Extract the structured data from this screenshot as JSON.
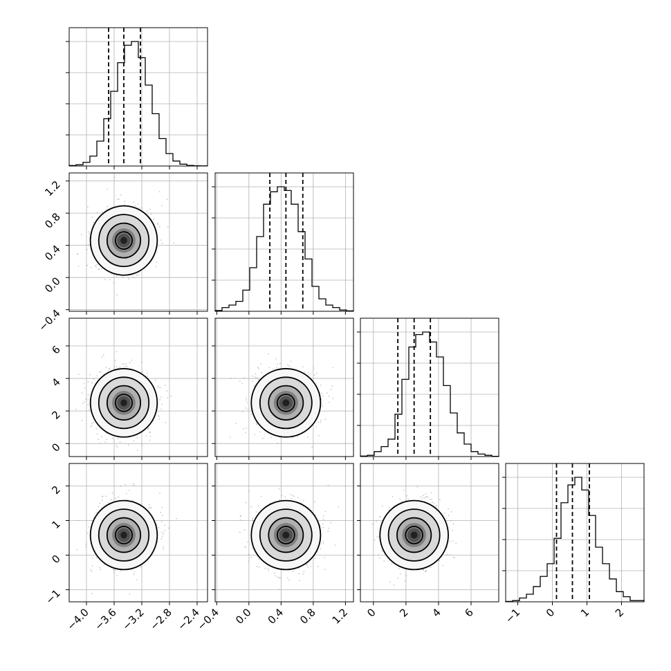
{
  "chart_data": {
    "type": "corner",
    "parameters": [
      {
        "id": "p0",
        "range": [
          -4.25,
          -2.25
        ],
        "ticks": [
          -4.0,
          -3.6,
          -3.2,
          -2.8,
          -2.4
        ],
        "tick_labels": [
          "−4.0",
          "−3.6",
          "−3.2",
          "−2.8",
          "−2.4"
        ],
        "quantiles": [
          -3.68,
          -3.46,
          -3.22
        ]
      },
      {
        "id": "p1",
        "range": [
          -0.42,
          1.3
        ],
        "ticks": [
          -0.4,
          0.0,
          0.4,
          0.8,
          1.2
        ],
        "tick_labels": [
          "−0.4",
          "0.0",
          "0.4",
          "0.8",
          "1.2"
        ],
        "quantiles": [
          0.26,
          0.46,
          0.67
        ]
      },
      {
        "id": "p2",
        "range": [
          -0.8,
          7.7
        ],
        "ticks": [
          0,
          2,
          4,
          6
        ],
        "tick_labels": [
          "0",
          "2",
          "4",
          "6"
        ],
        "quantiles": [
          1.5,
          2.5,
          3.5
        ]
      },
      {
        "id": "p3",
        "range": [
          -1.35,
          2.65
        ],
        "ticks": [
          -1,
          0,
          1,
          2
        ],
        "tick_labels": [
          "−1",
          "0",
          "1",
          "2"
        ],
        "quantiles": [
          0.12,
          0.58,
          1.07
        ]
      }
    ],
    "histograms": [
      [
        0.004,
        0.01,
        0.03,
        0.08,
        0.2,
        0.38,
        0.6,
        0.83,
        0.97,
        1.0,
        0.87,
        0.65,
        0.42,
        0.22,
        0.1,
        0.04,
        0.015,
        0.005,
        0.002,
        0.001
      ],
      [
        0.006,
        0.03,
        0.05,
        0.08,
        0.17,
        0.35,
        0.6,
        0.86,
        0.96,
        1.0,
        0.97,
        0.86,
        0.64,
        0.42,
        0.2,
        0.1,
        0.05,
        0.03,
        0.01,
        0.003
      ],
      [
        0.004,
        0.01,
        0.04,
        0.08,
        0.14,
        0.34,
        0.62,
        0.88,
        0.98,
        1.0,
        0.92,
        0.8,
        0.57,
        0.35,
        0.19,
        0.1,
        0.04,
        0.02,
        0.01,
        0.002
      ],
      [
        0.003,
        0.01,
        0.03,
        0.06,
        0.12,
        0.2,
        0.3,
        0.5,
        0.78,
        0.92,
        0.98,
        0.88,
        0.68,
        0.43,
        0.3,
        0.18,
        0.08,
        0.04,
        0.01,
        0.01
      ]
    ],
    "centers": [
      [
        -3.46,
        0.46,
        2.3,
        0.6
      ],
      [
        -3.46,
        0.46,
        2.3,
        0.6
      ],
      [
        -3.46,
        0.46,
        2.3,
        0.6
      ]
    ],
    "contour_levels": [
      "0.5σ",
      "1σ",
      "1.5σ",
      "2σ"
    ],
    "grid": true,
    "quantile_style": "dashed"
  }
}
